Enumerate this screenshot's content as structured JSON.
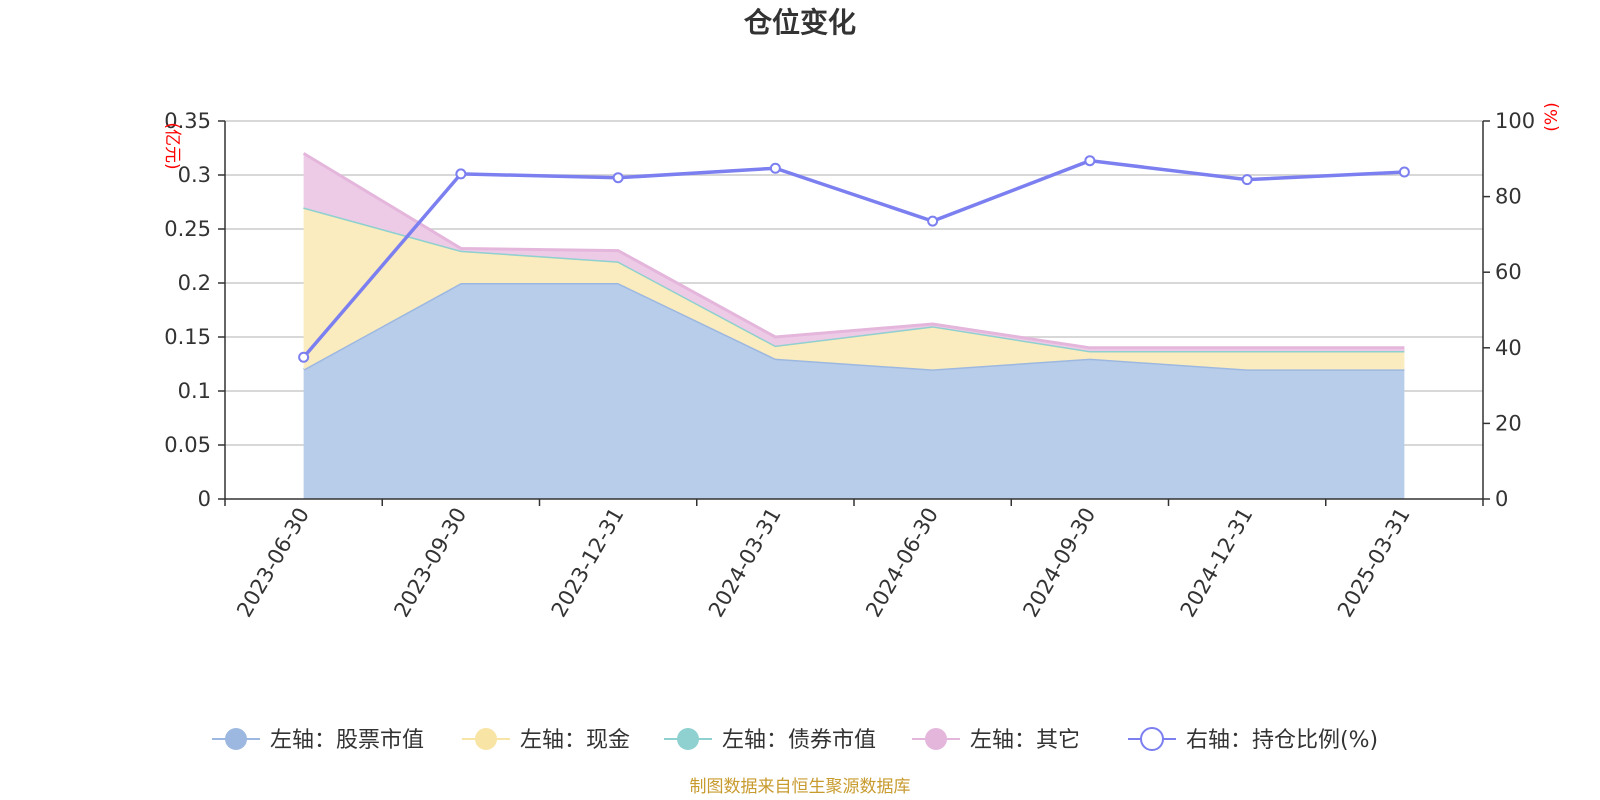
{
  "chart_data": {
    "type": "area",
    "title": "仓位变化",
    "categories": [
      "2023-06-30",
      "2023-09-30",
      "2023-12-31",
      "2024-03-31",
      "2024-06-30",
      "2024-09-30",
      "2024-12-31",
      "2025-03-31"
    ],
    "left_axis": {
      "unit": "(亿元)",
      "ylim": [
        0,
        0.35
      ],
      "ticks": [
        "0",
        "0.05",
        "0.1",
        "0.15",
        "0.2",
        "0.25",
        "0.3",
        "0.35"
      ]
    },
    "right_axis": {
      "unit": "(%)",
      "ylim": [
        0,
        100
      ],
      "ticks": [
        "0",
        "20",
        "40",
        "60",
        "80",
        "100"
      ]
    },
    "series": [
      {
        "name": "左轴：股票市值",
        "axis": "left",
        "kind": "stacked-area",
        "color": "#9db8e0",
        "fill": "#b8cdea",
        "values": [
          0.12,
          0.2,
          0.2,
          0.13,
          0.12,
          0.13,
          0.12,
          0.12
        ]
      },
      {
        "name": "左轴：现金",
        "axis": "left",
        "kind": "stacked-area",
        "color": "#f8e4a4",
        "fill": "#faecbf",
        "values": [
          0.15,
          0.03,
          0.02,
          0.012,
          0.04,
          0.007,
          0.017,
          0.017
        ]
      },
      {
        "name": "左轴：债券市值",
        "axis": "left",
        "kind": "stacked-area",
        "color": "#8fd0d0",
        "fill": "#a9dcdc",
        "values": [
          0,
          0,
          0,
          0,
          0,
          0,
          0,
          0
        ]
      },
      {
        "name": "左轴：其它",
        "axis": "left",
        "kind": "stacked-area",
        "color": "#e4b6dc",
        "fill": "#edcbe6",
        "values": [
          0.05,
          0.002,
          0.01,
          0.008,
          0.002,
          0.003,
          0.003,
          0.003
        ]
      },
      {
        "name": "右轴：持仓比例(%)",
        "axis": "right",
        "kind": "line",
        "color": "#7b7ff0",
        "values": [
          37.5,
          86,
          85,
          87.5,
          73.5,
          89.5,
          84.5,
          86.5
        ]
      }
    ],
    "grid": true,
    "legend_position": "bottom"
  },
  "source_note": "制图数据来自恒生聚源数据库"
}
